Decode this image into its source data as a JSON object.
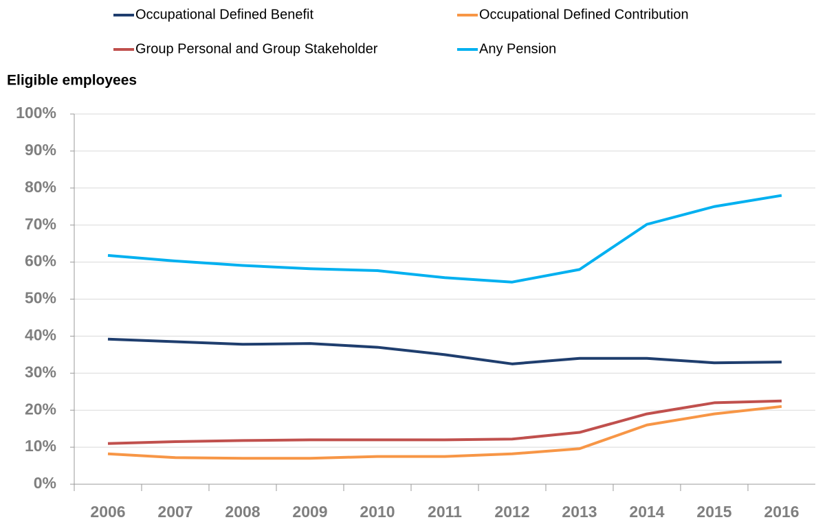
{
  "chart_data": {
    "type": "line",
    "y_axis_title": "Eligible employees",
    "categories": [
      "2006",
      "2007",
      "2008",
      "2009",
      "2010",
      "2011",
      "2012",
      "2013",
      "2014",
      "2015",
      "2016"
    ],
    "series": [
      {
        "name": "Occupational Defined Benefit",
        "color": "#1f3e6e",
        "values": [
          39.2,
          38.5,
          37.8,
          38,
          37,
          35,
          32.5,
          34,
          34,
          32.8,
          33
        ]
      },
      {
        "name": "Occupational Defined Contribution",
        "color": "#f79646",
        "values": [
          8.2,
          7.2,
          7,
          7,
          7.5,
          7.5,
          8.2,
          9.6,
          16,
          19,
          21
        ]
      },
      {
        "name": "Group Personal and Group Stakeholder",
        "color": "#c0504d",
        "values": [
          11,
          11.5,
          11.8,
          12,
          12,
          12,
          12.2,
          14,
          19,
          22,
          22.5
        ]
      },
      {
        "name": "Any Pension",
        "color": "#00b0f0",
        "values": [
          61.8,
          60.3,
          59.1,
          58.2,
          57.7,
          55.8,
          54.6,
          58,
          70.2,
          75,
          78
        ]
      }
    ],
    "ylim": [
      0,
      100
    ],
    "yticks": [
      {
        "value": 0,
        "label": "0%"
      },
      {
        "value": 10,
        "label": "10%"
      },
      {
        "value": 20,
        "label": "20%"
      },
      {
        "value": 30,
        "label": "30%"
      },
      {
        "value": 40,
        "label": "40%"
      },
      {
        "value": 50,
        "label": "50%"
      },
      {
        "value": 60,
        "label": "60%"
      },
      {
        "value": 70,
        "label": "70%"
      },
      {
        "value": 80,
        "label": "80%"
      },
      {
        "value": 90,
        "label": "90%"
      },
      {
        "value": 100,
        "label": "100%"
      }
    ],
    "grid": true
  }
}
